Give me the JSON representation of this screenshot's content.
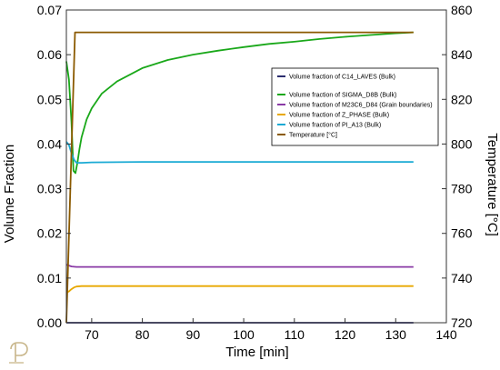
{
  "chart_data": {
    "type": "line",
    "xlabel": "Time [min]",
    "ylabel_left": "Volume Fraction",
    "ylabel_right": "Temperature [°C]",
    "xlim": [
      65,
      140
    ],
    "ylim_left": [
      0,
      0.07
    ],
    "ylim_right": [
      720,
      860
    ],
    "x_ticks": [
      "70",
      "80",
      "90",
      "100",
      "110",
      "120",
      "130",
      "140"
    ],
    "y_left_ticks": [
      "0.00",
      "0.01",
      "0.02",
      "0.03",
      "0.04",
      "0.05",
      "0.06",
      "0.07"
    ],
    "y_right_ticks": [
      "720",
      "740",
      "760",
      "780",
      "800",
      "820",
      "840",
      "860"
    ],
    "grid": false,
    "legend_position": "upper-right",
    "series": [
      {
        "name": "Volume fraction of C14_LAVES (Bulk)",
        "color": "#2b2d6e",
        "axis": "left",
        "x": [
          65,
          133.5
        ],
        "y": [
          0.0,
          0.0
        ]
      },
      {
        "name": "Volume fraction of SIGMA_D8B (Bulk)",
        "color": "#1aa81a",
        "axis": "left",
        "x": [
          65,
          65.5,
          66,
          66.4,
          66.8,
          67.2,
          67.6,
          68,
          69,
          70,
          72,
          75,
          80,
          85,
          90,
          95,
          100,
          105,
          110,
          115,
          120,
          125,
          130,
          133.5
        ],
        "y": [
          0.0585,
          0.0545,
          0.045,
          0.034,
          0.0335,
          0.036,
          0.039,
          0.0415,
          0.0455,
          0.048,
          0.0513,
          0.054,
          0.057,
          0.0588,
          0.06,
          0.0609,
          0.0617,
          0.0624,
          0.0629,
          0.0635,
          0.064,
          0.0644,
          0.0648,
          0.065
        ]
      },
      {
        "name": "Volume fraction of M23C6_D84 (Grain boundaries)",
        "color": "#8a3aa6",
        "axis": "left",
        "x": [
          65,
          65.5,
          66,
          67,
          70,
          133.5
        ],
        "y": [
          0.013,
          0.0128,
          0.0126,
          0.0125,
          0.0125,
          0.0125
        ]
      },
      {
        "name": "Volume fraction of Z_PHASE (Bulk)",
        "color": "#e8a800",
        "axis": "left",
        "x": [
          65,
          65.5,
          66,
          66.5,
          67,
          68,
          70,
          80,
          133.5
        ],
        "y": [
          0.0068,
          0.007,
          0.0075,
          0.0079,
          0.0081,
          0.0082,
          0.0082,
          0.0082,
          0.0082
        ]
      },
      {
        "name": "Volume fraction of PI_A13 (Bulk)",
        "color": "#1aaad4",
        "axis": "left",
        "x": [
          65,
          65.5,
          66,
          66.5,
          67,
          68,
          70,
          80,
          100,
          133.5
        ],
        "y": [
          0.0405,
          0.0398,
          0.038,
          0.0365,
          0.0358,
          0.0358,
          0.0359,
          0.036,
          0.036,
          0.036
        ]
      },
      {
        "name": "Temperature [°C]",
        "color": "#8b5a00",
        "axis": "right",
        "x": [
          65,
          66.7,
          67,
          133.5
        ],
        "y": [
          720,
          850,
          850,
          850
        ]
      }
    ]
  },
  "logo": {
    "name": "thermo-calc-logo",
    "color": "#c8b68a"
  }
}
